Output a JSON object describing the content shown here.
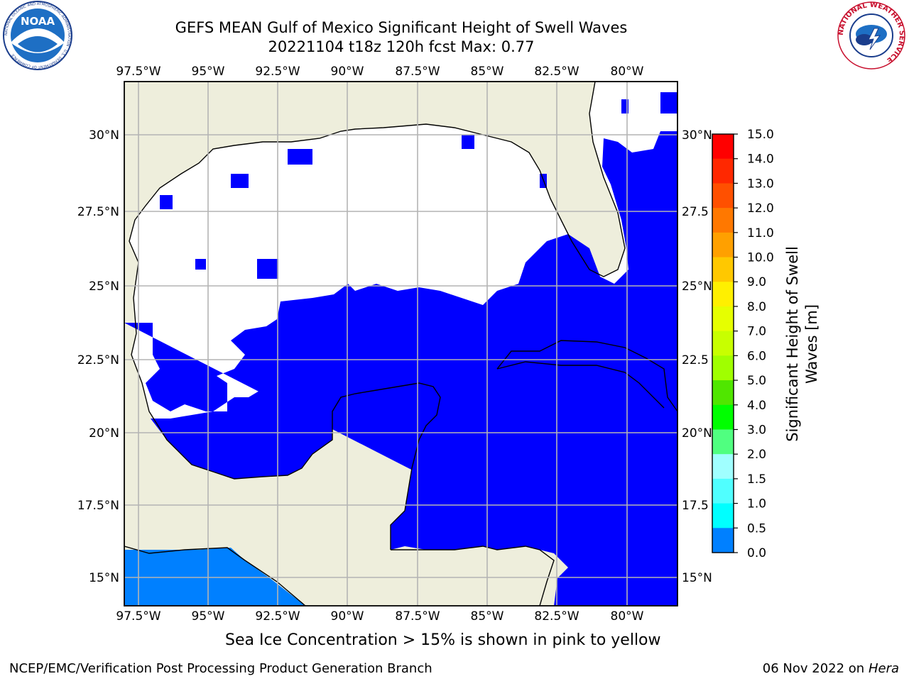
{
  "header": {
    "title_line1": "GEFS MEAN Gulf of Mexico Significant Height of Swell Waves",
    "title_line2": "20221104 t18z 120h fcst   Max: 0.77"
  },
  "logos": {
    "left": {
      "icon": "noaa-logo",
      "text": "NOAA",
      "ring_text": "NATIONAL OCEANIC AND ATMOSPHERIC ADMINISTRATION · U.S. DEPARTMENT OF COMMERCE"
    },
    "right": {
      "icon": "nws-logo",
      "ring_text": "NATIONAL WEATHER SERVICE"
    }
  },
  "map": {
    "lon_ticks": [
      "97.5°W",
      "95°W",
      "92.5°W",
      "90°W",
      "87.5°W",
      "85°W",
      "82.5°W",
      "80°W"
    ],
    "lat_ticks_left": [
      "30°N",
      "27.5°N",
      "25°N",
      "22.5°N",
      "20°N",
      "17.5°N",
      "15°N"
    ],
    "lat_ticks_right": [
      "30°N",
      "27.5",
      "25°N",
      "22.5",
      "20°N",
      "17.5",
      "15°N"
    ],
    "colors": {
      "land": "#eeeedc",
      "ocean_low": "#0000ff",
      "ocean_mid": "#0080ff",
      "no_data": "#ffffff",
      "grid": "#b4b4b4"
    }
  },
  "colorbar": {
    "label": "Significant Height of Swell Waves [m]",
    "label_line1": "Significant Height of Swell",
    "label_line2": "Waves [m]",
    "ticks": [
      "15.0",
      "14.0",
      "13.0",
      "12.0",
      "11.0",
      "10.0",
      "9.0",
      "8.0",
      "7.0",
      "6.0",
      "5.0",
      "4.0",
      "3.0",
      "2.0",
      "1.5",
      "1.0",
      "0.5",
      "0.0"
    ],
    "colors": [
      "#ff0000",
      "#ff2800",
      "#ff5000",
      "#ff7800",
      "#ffa000",
      "#ffc800",
      "#fff000",
      "#e6ff00",
      "#c8ff00",
      "#a0ff00",
      "#50e600",
      "#00ff00",
      "#50ff80",
      "#a0ffff",
      "#50ffff",
      "#00ffff",
      "#0080ff",
      "#0000ff"
    ]
  },
  "footer": {
    "ice_note": "Sea Ice Concentration > 15% is shown in pink to yellow",
    "credit": "NCEP/EMC/Verification Post Processing Product Generation Branch",
    "date": "06 Nov 2022 on",
    "host": "Hera"
  }
}
